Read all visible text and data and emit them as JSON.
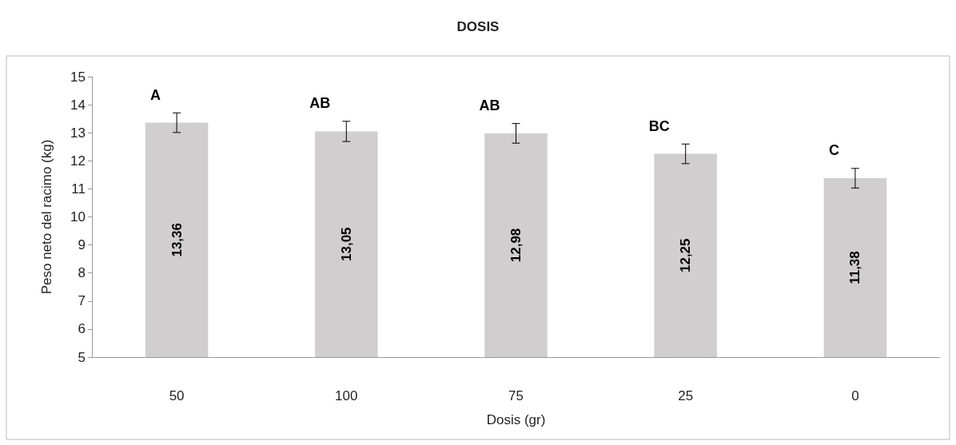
{
  "chart_data": {
    "type": "bar",
    "title": "DOSIS",
    "xlabel": "Dosis (gr)",
    "ylabel": "Peso neto del racimo (kg)",
    "categories": [
      "50",
      "100",
      "75",
      "25",
      "0"
    ],
    "values": [
      13.36,
      13.05,
      12.98,
      12.25,
      11.38
    ],
    "value_labels": [
      "13,36",
      "13,05",
      "12,98",
      "12,25",
      "11,38"
    ],
    "errors": [
      0.35,
      0.36,
      0.35,
      0.35,
      0.35
    ],
    "color": "#d0cece",
    "ylim": [
      5,
      15
    ],
    "yticks": [
      5,
      6,
      7,
      8,
      9,
      10,
      11,
      12,
      13,
      14,
      15
    ],
    "grid": false,
    "annotations": [
      {
        "text": "A",
        "x": "50",
        "y": 13.36
      },
      {
        "text": "AB",
        "x": "100",
        "y": 13.05
      },
      {
        "text": "AB",
        "x": "75",
        "y": 12.98
      },
      {
        "text": "BC",
        "x": "25",
        "y": 12.25
      },
      {
        "text": "C",
        "x": "0",
        "y": 11.38
      }
    ]
  }
}
